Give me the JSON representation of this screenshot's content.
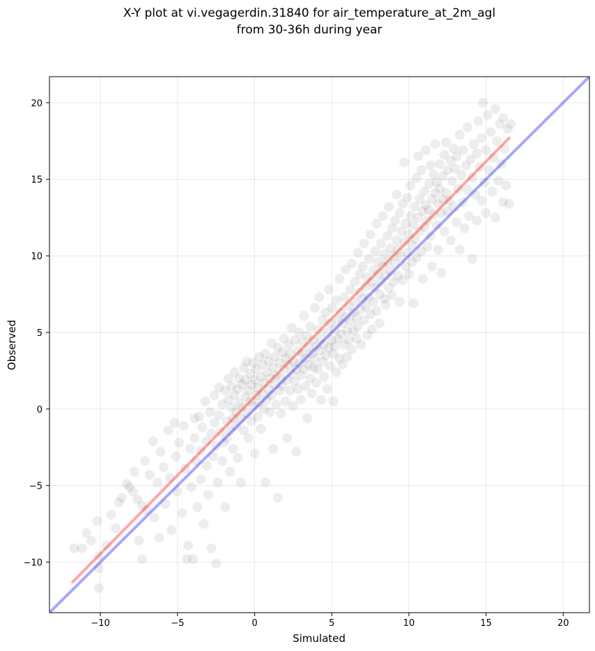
{
  "chart_data": {
    "type": "scatter",
    "title": "X-Y plot at vi.vegagerdin.31840 for air_temperature_at_2m_agl",
    "subtitle": "from 30-36h during year",
    "xlabel": "Simulated",
    "ylabel": "Observed",
    "xlim": [
      -13.3,
      21.7
    ],
    "ylim": [
      -13.3,
      21.7
    ],
    "xticks": [
      -10,
      -5,
      0,
      5,
      10,
      15,
      20
    ],
    "yticks": [
      -10,
      -5,
      0,
      5,
      10,
      15,
      20
    ],
    "xtick_labels": [
      "−10",
      "−5",
      "0",
      "5",
      "10",
      "15",
      "20"
    ],
    "ytick_labels": [
      "−10",
      "−5",
      "0",
      "5",
      "10",
      "15",
      "20"
    ],
    "grid": true,
    "point_color": "#000000",
    "point_alpha": 0.07,
    "identity_line": {
      "x": [
        -13.3,
        21.7
      ],
      "y": [
        -13.3,
        21.7
      ],
      "color": "#0000ff",
      "alpha": 0.35
    },
    "fit_line": {
      "x": [
        -11.8,
        16.5
      ],
      "y": [
        -11.3,
        17.7
      ],
      "color": "#ff0000",
      "alpha": 0.35
    },
    "points": [
      [
        -11.7,
        -9.1
      ],
      [
        -11.2,
        -9.1
      ],
      [
        -10.9,
        -8.1
      ],
      [
        -10.6,
        -8.6
      ],
      [
        -10.2,
        -7.3
      ],
      [
        -10.1,
        -9.6
      ],
      [
        -10.1,
        -10.4
      ],
      [
        -10.1,
        -11.7
      ],
      [
        -9.6,
        -8.9
      ],
      [
        -9.3,
        -6.9
      ],
      [
        -9.0,
        -7.8
      ],
      [
        -8.8,
        -6.1
      ],
      [
        -8.6,
        -5.8
      ],
      [
        -8.3,
        -4.9
      ],
      [
        -8.1,
        -5.1
      ],
      [
        -7.9,
        -5.4
      ],
      [
        -7.8,
        -4.1
      ],
      [
        -7.6,
        -5.9
      ],
      [
        -7.5,
        -8.6
      ],
      [
        -7.3,
        -6.3
      ],
      [
        -7.3,
        -9.8
      ],
      [
        -7.1,
        -3.4
      ],
      [
        -7.0,
        -6.6
      ],
      [
        -6.8,
        -4.3
      ],
      [
        -6.6,
        -2.1
      ],
      [
        -6.5,
        -7.1
      ],
      [
        -6.3,
        -4.8
      ],
      [
        -6.2,
        -8.4
      ],
      [
        -6.1,
        -2.8
      ],
      [
        -5.9,
        -3.8
      ],
      [
        -5.8,
        -6.2
      ],
      [
        -5.6,
        -1.4
      ],
      [
        -5.5,
        -4.5
      ],
      [
        -5.4,
        -7.9
      ],
      [
        -5.2,
        -0.9
      ],
      [
        -5.1,
        -3.1
      ],
      [
        -5.0,
        -5.4
      ],
      [
        -4.9,
        -2.2
      ],
      [
        -4.7,
        -6.8
      ],
      [
        -4.6,
        -1.1
      ],
      [
        -4.5,
        -3.9
      ],
      [
        -4.4,
        -9.8
      ],
      [
        -4.3,
        -8.9
      ],
      [
        -4.2,
        -2.6
      ],
      [
        -4.1,
        -5.1
      ],
      [
        -4.0,
        -9.8
      ],
      [
        -3.9,
        -0.6
      ],
      [
        -3.9,
        -1.9
      ],
      [
        -3.8,
        -3.4
      ],
      [
        -3.7,
        -6.4
      ],
      [
        -3.6,
        -0.5
      ],
      [
        -3.5,
        -2.7
      ],
      [
        -3.5,
        -4.6
      ],
      [
        -3.4,
        -1.2
      ],
      [
        -3.3,
        -7.5
      ],
      [
        -3.2,
        0.5
      ],
      [
        -3.1,
        -2.1
      ],
      [
        -3.1,
        -3.7
      ],
      [
        -3.0,
        -5.6
      ],
      [
        -2.9,
        -0.2
      ],
      [
        -2.8,
        -1.6
      ],
      [
        -2.8,
        -9.1
      ],
      [
        -2.7,
        -3.1
      ],
      [
        -2.6,
        0.9
      ],
      [
        -2.6,
        -0.9
      ],
      [
        -2.5,
        -2.4
      ],
      [
        -2.5,
        -10.1
      ],
      [
        -2.4,
        -4.8
      ],
      [
        -2.3,
        -0.4
      ],
      [
        -2.3,
        1.4
      ],
      [
        -2.2,
        -1.5
      ],
      [
        -2.1,
        -3.4
      ],
      [
        -2.1,
        0.3
      ],
      [
        -2.0,
        -2.2
      ],
      [
        -1.9,
        -6.4
      ],
      [
        -1.9,
        1.2
      ],
      [
        -1.8,
        -0.8
      ],
      [
        -1.8,
        -1.9
      ],
      [
        -1.7,
        0.6
      ],
      [
        -1.7,
        2.0
      ],
      [
        -1.6,
        -1.4
      ],
      [
        -1.6,
        -4.1
      ],
      [
        -1.5,
        0.1
      ],
      [
        -1.5,
        1.5
      ],
      [
        -1.4,
        -0.6
      ],
      [
        -1.4,
        -2.6
      ],
      [
        -1.3,
        0.9
      ],
      [
        -1.3,
        2.4
      ],
      [
        -1.2,
        -0.2
      ],
      [
        -1.2,
        -1.1
      ],
      [
        -1.1,
        1.3
      ],
      [
        -1.1,
        -3.2
      ],
      [
        -1.0,
        0.4
      ],
      [
        -1.0,
        2.0
      ],
      [
        -0.9,
        -0.6
      ],
      [
        -0.9,
        -4.8
      ],
      [
        -0.8,
        1.6
      ],
      [
        -0.8,
        0.1
      ],
      [
        -0.7,
        2.7
      ],
      [
        -0.7,
        -1.4
      ],
      [
        -0.6,
        0.8
      ],
      [
        -0.6,
        1.9
      ],
      [
        -0.5,
        -0.3
      ],
      [
        -0.5,
        3.1
      ],
      [
        -0.4,
        1.2
      ],
      [
        -0.4,
        -1.9
      ],
      [
        -0.3,
        0.5
      ],
      [
        -0.3,
        2.3
      ],
      [
        -0.2,
        -0.8
      ],
      [
        -0.2,
        1.6
      ],
      [
        -0.1,
        3.0
      ],
      [
        -0.1,
        0.2
      ],
      [
        0.0,
        1.9
      ],
      [
        0.0,
        -2.9
      ],
      [
        0.1,
        0.9
      ],
      [
        0.1,
        2.6
      ],
      [
        0.2,
        -0.5
      ],
      [
        0.2,
        1.4
      ],
      [
        0.3,
        3.4
      ],
      [
        0.3,
        0.4
      ],
      [
        0.4,
        2.1
      ],
      [
        0.4,
        -1.3
      ],
      [
        0.5,
        1.0
      ],
      [
        0.5,
        2.9
      ],
      [
        0.6,
        0.0
      ],
      [
        0.6,
        1.7
      ],
      [
        0.7,
        3.6
      ],
      [
        0.7,
        -4.8
      ],
      [
        0.8,
        2.4
      ],
      [
        0.8,
        0.6
      ],
      [
        0.9,
        1.3
      ],
      [
        0.9,
        3.1
      ],
      [
        1.0,
        -0.2
      ],
      [
        1.0,
        2.0
      ],
      [
        1.1,
        4.3
      ],
      [
        1.1,
        0.9
      ],
      [
        1.2,
        2.7
      ],
      [
        1.2,
        -2.6
      ],
      [
        1.3,
        1.6
      ],
      [
        1.3,
        3.4
      ],
      [
        1.4,
        0.3
      ],
      [
        1.4,
        2.2
      ],
      [
        1.5,
        4.0
      ],
      [
        1.5,
        -5.8
      ],
      [
        1.6,
        1.2
      ],
      [
        1.6,
        3.0
      ],
      [
        1.7,
        2.0
      ],
      [
        1.7,
        -0.3
      ],
      [
        1.8,
        3.7
      ],
      [
        1.8,
        1.5
      ],
      [
        1.9,
        2.6
      ],
      [
        1.9,
        4.6
      ],
      [
        2.0,
        0.5
      ],
      [
        2.0,
        3.3
      ],
      [
        2.1,
        1.9
      ],
      [
        2.1,
        -1.9
      ],
      [
        2.2,
        2.9
      ],
      [
        2.2,
        4.2
      ],
      [
        2.3,
        1.2
      ],
      [
        2.3,
        3.6
      ],
      [
        2.4,
        2.3
      ],
      [
        2.4,
        5.3
      ],
      [
        2.5,
        0.2
      ],
      [
        2.5,
        3.1
      ],
      [
        2.6,
        1.8
      ],
      [
        2.6,
        4.5
      ],
      [
        2.7,
        2.6
      ],
      [
        2.7,
        -2.8
      ],
      [
        2.8,
        3.8
      ],
      [
        2.8,
        1.3
      ],
      [
        2.9,
        3.0
      ],
      [
        2.9,
        5.0
      ],
      [
        3.0,
        2.2
      ],
      [
        3.0,
        0.6
      ],
      [
        3.1,
        3.6
      ],
      [
        3.1,
        4.4
      ],
      [
        3.2,
        2.6
      ],
      [
        3.2,
        6.1
      ],
      [
        3.3,
        1.5
      ],
      [
        3.3,
        3.3
      ],
      [
        3.4,
        4.8
      ],
      [
        3.4,
        -0.6
      ],
      [
        3.5,
        2.9
      ],
      [
        3.5,
        4.0
      ],
      [
        3.6,
        2.0
      ],
      [
        3.6,
        5.4
      ],
      [
        3.7,
        3.6
      ],
      [
        3.7,
        1.0
      ],
      [
        3.8,
        4.5
      ],
      [
        3.8,
        2.7
      ],
      [
        3.9,
        6.6
      ],
      [
        3.9,
        3.3
      ],
      [
        4.0,
        4.1
      ],
      [
        4.0,
        1.7
      ],
      [
        4.1,
        5.2
      ],
      [
        4.1,
        2.6
      ],
      [
        4.2,
        3.8
      ],
      [
        4.2,
        7.3
      ],
      [
        4.3,
        4.6
      ],
      [
        4.3,
        0.6
      ],
      [
        4.4,
        3.1
      ],
      [
        4.4,
        5.8
      ],
      [
        4.5,
        2.1
      ],
      [
        4.5,
        4.2
      ],
      [
        4.6,
        6.3
      ],
      [
        4.6,
        3.5
      ],
      [
        4.7,
        5.0
      ],
      [
        4.7,
        1.3
      ],
      [
        4.8,
        4.0
      ],
      [
        4.8,
        7.8
      ],
      [
        4.9,
        5.6
      ],
      [
        4.9,
        2.8
      ],
      [
        5.0,
        4.5
      ],
      [
        5.0,
        6.6
      ],
      [
        5.1,
        3.6
      ],
      [
        5.1,
        0.5
      ],
      [
        5.2,
        5.2
      ],
      [
        5.2,
        4.1
      ],
      [
        5.3,
        7.1
      ],
      [
        5.3,
        2.4
      ],
      [
        5.4,
        5.8
      ],
      [
        5.4,
        4.6
      ],
      [
        5.5,
        3.3
      ],
      [
        5.5,
        8.5
      ],
      [
        5.6,
        6.3
      ],
      [
        5.6,
        4.9
      ],
      [
        5.7,
        2.9
      ],
      [
        5.7,
        5.6
      ],
      [
        5.8,
        7.3
      ],
      [
        5.8,
        4.2
      ],
      [
        5.9,
        6.0
      ],
      [
        5.9,
        9.1
      ],
      [
        6.0,
        5.1
      ],
      [
        6.0,
        3.4
      ],
      [
        6.1,
        6.7
      ],
      [
        6.1,
        4.5
      ],
      [
        6.2,
        7.8
      ],
      [
        6.2,
        5.7
      ],
      [
        6.3,
        9.5
      ],
      [
        6.3,
        3.9
      ],
      [
        6.4,
        6.3
      ],
      [
        6.4,
        5.1
      ],
      [
        6.5,
        8.3
      ],
      [
        6.5,
        7.0
      ],
      [
        6.6,
        4.6
      ],
      [
        6.6,
        6.0
      ],
      [
        6.7,
        10.2
      ],
      [
        6.7,
        5.4
      ],
      [
        6.8,
        7.6
      ],
      [
        6.8,
        8.8
      ],
      [
        6.9,
        6.5
      ],
      [
        6.9,
        4.2
      ],
      [
        7.0,
        7.2
      ],
      [
        7.0,
        9.3
      ],
      [
        7.1,
        5.8
      ],
      [
        7.1,
        10.8
      ],
      [
        7.2,
        8.0
      ],
      [
        7.2,
        6.7
      ],
      [
        7.3,
        4.8
      ],
      [
        7.3,
        8.6
      ],
      [
        7.4,
        7.3
      ],
      [
        7.4,
        9.8
      ],
      [
        7.5,
        6.2
      ],
      [
        7.5,
        11.4
      ],
      [
        7.6,
        8.3
      ],
      [
        7.6,
        5.2
      ],
      [
        7.7,
        9.1
      ],
      [
        7.7,
        7.0
      ],
      [
        7.8,
        10.3
      ],
      [
        7.8,
        7.9
      ],
      [
        7.9,
        6.4
      ],
      [
        7.9,
        12.1
      ],
      [
        8.0,
        8.8
      ],
      [
        8.0,
        9.6
      ],
      [
        8.1,
        7.5
      ],
      [
        8.1,
        5.6
      ],
      [
        8.2,
        10.8
      ],
      [
        8.2,
        8.3
      ],
      [
        8.3,
        9.3
      ],
      [
        8.3,
        12.6
      ],
      [
        8.4,
        7.2
      ],
      [
        8.4,
        10.1
      ],
      [
        8.5,
        8.7
      ],
      [
        8.5,
        6.8
      ],
      [
        8.6,
        11.3
      ],
      [
        8.6,
        9.6
      ],
      [
        8.7,
        7.9
      ],
      [
        8.7,
        13.2
      ],
      [
        8.8,
        10.5
      ],
      [
        8.8,
        9.0
      ],
      [
        8.9,
        11.8
      ],
      [
        8.9,
        7.4
      ],
      [
        9.0,
        10.0
      ],
      [
        9.0,
        8.3
      ],
      [
        9.1,
        12.3
      ],
      [
        9.1,
        9.5
      ],
      [
        9.2,
        11.0
      ],
      [
        9.2,
        14.0
      ],
      [
        9.3,
        8.7
      ],
      [
        9.3,
        10.4
      ],
      [
        9.4,
        12.8
      ],
      [
        9.4,
        7.0
      ],
      [
        9.5,
        9.9
      ],
      [
        9.5,
        11.6
      ],
      [
        9.6,
        13.4
      ],
      [
        9.6,
        8.4
      ],
      [
        9.7,
        10.9
      ],
      [
        9.7,
        16.1
      ],
      [
        9.8,
        12.1
      ],
      [
        9.8,
        9.3
      ],
      [
        9.9,
        10.2
      ],
      [
        9.9,
        13.8
      ],
      [
        10.0,
        11.4
      ],
      [
        10.0,
        8.8
      ],
      [
        10.1,
        12.6
      ],
      [
        10.1,
        14.6
      ],
      [
        10.2,
        10.7
      ],
      [
        10.2,
        9.6
      ],
      [
        10.3,
        12.0
      ],
      [
        10.3,
        6.9
      ],
      [
        10.4,
        13.2
      ],
      [
        10.4,
        11.1
      ],
      [
        10.5,
        15.1
      ],
      [
        10.5,
        9.9
      ],
      [
        10.6,
        12.5
      ],
      [
        10.6,
        16.5
      ],
      [
        10.7,
        11.6
      ],
      [
        10.7,
        13.7
      ],
      [
        10.8,
        10.3
      ],
      [
        10.8,
        15.6
      ],
      [
        10.9,
        12.9
      ],
      [
        10.9,
        8.5
      ],
      [
        11.0,
        11.9
      ],
      [
        11.0,
        14.2
      ],
      [
        11.1,
        13.3
      ],
      [
        11.1,
        16.9
      ],
      [
        11.2,
        12.3
      ],
      [
        11.2,
        10.6
      ],
      [
        11.3,
        14.7
      ],
      [
        11.3,
        13.0
      ],
      [
        11.4,
        15.9
      ],
      [
        11.4,
        11.3
      ],
      [
        11.5,
        13.7
      ],
      [
        11.5,
        9.3
      ],
      [
        11.6,
        12.7
      ],
      [
        11.6,
        15.3
      ],
      [
        11.7,
        14.1
      ],
      [
        11.7,
        17.3
      ],
      [
        11.8,
        12.0
      ],
      [
        11.8,
        14.8
      ],
      [
        11.9,
        13.4
      ],
      [
        11.9,
        10.4
      ],
      [
        12.0,
        16.0
      ],
      [
        12.0,
        14.4
      ],
      [
        12.1,
        12.8
      ],
      [
        12.1,
        8.9
      ],
      [
        12.2,
        15.2
      ],
      [
        12.2,
        13.7
      ],
      [
        12.3,
        16.6
      ],
      [
        12.3,
        11.6
      ],
      [
        12.4,
        14.1
      ],
      [
        12.4,
        17.4
      ],
      [
        12.5,
        12.9
      ],
      [
        12.5,
        15.6
      ],
      [
        12.6,
        13.6
      ],
      [
        12.7,
        16.2
      ],
      [
        12.7,
        11.0
      ],
      [
        12.8,
        14.9
      ],
      [
        12.9,
        17.0
      ],
      [
        12.9,
        13.2
      ],
      [
        13.0,
        15.7
      ],
      [
        13.1,
        12.2
      ],
      [
        13.1,
        16.5
      ],
      [
        13.2,
        14.4
      ],
      [
        13.3,
        17.9
      ],
      [
        13.3,
        10.4
      ],
      [
        13.4,
        15.3
      ],
      [
        13.5,
        13.5
      ],
      [
        13.5,
        16.9
      ],
      [
        13.6,
        11.8
      ],
      [
        13.7,
        15.9
      ],
      [
        13.8,
        14.3
      ],
      [
        13.8,
        18.4
      ],
      [
        13.9,
        12.6
      ],
      [
        14.0,
        16.3
      ],
      [
        14.1,
        15.1
      ],
      [
        14.1,
        9.8
      ],
      [
        14.2,
        17.3
      ],
      [
        14.3,
        14.0
      ],
      [
        14.4,
        16.7
      ],
      [
        14.4,
        12.3
      ],
      [
        14.5,
        18.8
      ],
      [
        14.6,
        15.8
      ],
      [
        14.7,
        13.6
      ],
      [
        14.7,
        17.7
      ],
      [
        14.8,
        20.0
      ],
      [
        14.9,
        14.8
      ],
      [
        15.0,
        16.9
      ],
      [
        15.0,
        12.8
      ],
      [
        15.1,
        19.2
      ],
      [
        15.2,
        15.6
      ],
      [
        15.3,
        18.1
      ],
      [
        15.4,
        14.2
      ],
      [
        15.5,
        16.4
      ],
      [
        15.6,
        19.6
      ],
      [
        15.6,
        12.5
      ],
      [
        15.7,
        17.5
      ],
      [
        15.8,
        14.9
      ],
      [
        15.9,
        18.6
      ],
      [
        16.0,
        16.0
      ],
      [
        16.1,
        13.5
      ],
      [
        16.1,
        19.0
      ],
      [
        16.2,
        17.0
      ],
      [
        16.3,
        14.6
      ],
      [
        16.4,
        18.3
      ],
      [
        16.5,
        13.4
      ],
      [
        16.6,
        18.6
      ]
    ]
  }
}
